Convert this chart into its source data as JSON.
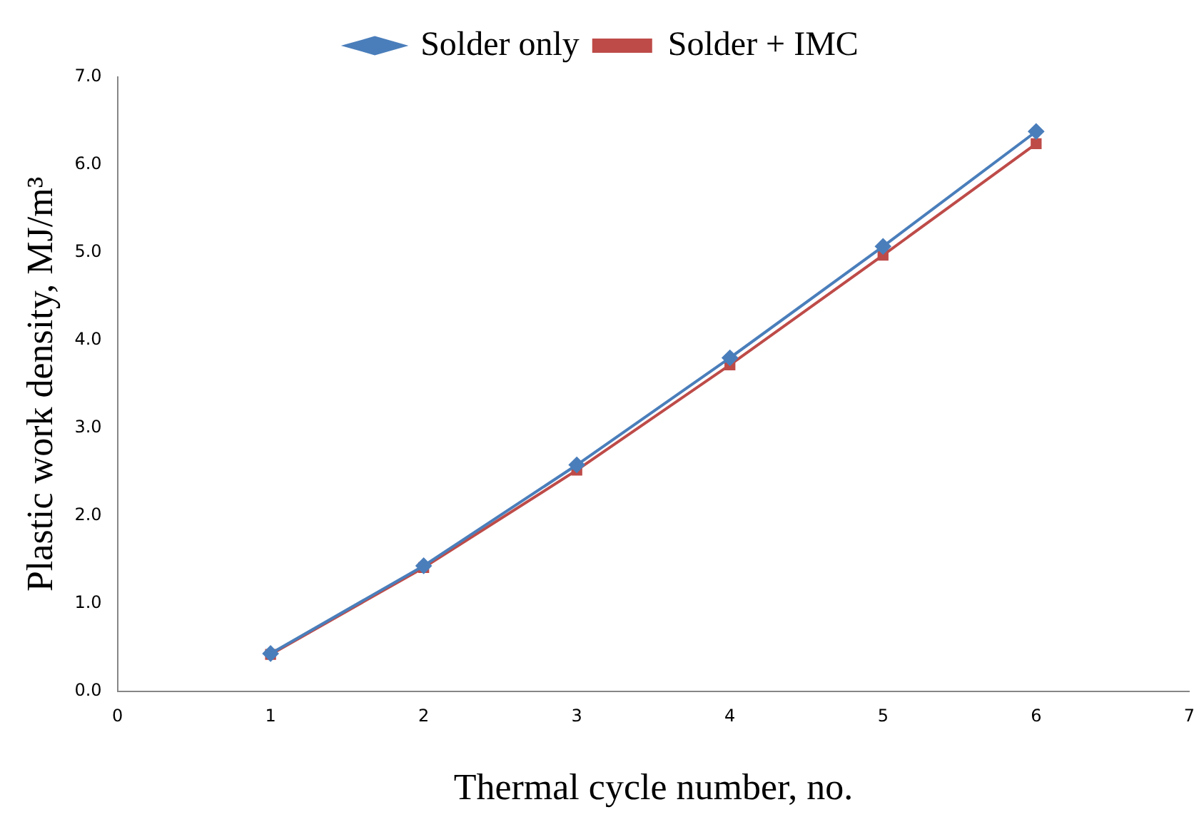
{
  "chart_data": {
    "type": "line",
    "xlabel": "Thermal cycle number, no.",
    "ylabel": "Plastic work density, MJ/m³",
    "x": [
      1,
      2,
      3,
      4,
      5,
      6
    ],
    "series": [
      {
        "name": "Solder only",
        "color": "#4a7ebb",
        "marker": "diamond",
        "values": [
          0.43,
          1.43,
          2.58,
          3.8,
          5.07,
          6.38
        ]
      },
      {
        "name": "Solder + IMC",
        "color": "#be4b48",
        "marker": "square",
        "values": [
          0.42,
          1.41,
          2.52,
          3.72,
          4.97,
          6.24
        ]
      }
    ],
    "xlim": [
      0,
      7
    ],
    "xticks": [
      0,
      1,
      2,
      3,
      4,
      5,
      6,
      7
    ],
    "ylim": [
      0,
      7
    ],
    "yticks": [
      {
        "value": 0,
        "label": "0.0"
      },
      {
        "value": 1,
        "label": "1.0"
      },
      {
        "value": 2,
        "label": "2.0"
      },
      {
        "value": 3,
        "label": "3.0"
      },
      {
        "value": 4,
        "label": "4.0"
      },
      {
        "value": 5,
        "label": "5.0"
      },
      {
        "value": 6,
        "label": "6.0"
      },
      {
        "value": 7,
        "label": "7.0"
      }
    ],
    "grid": false,
    "legend": "top",
    "line_style": "solid"
  }
}
